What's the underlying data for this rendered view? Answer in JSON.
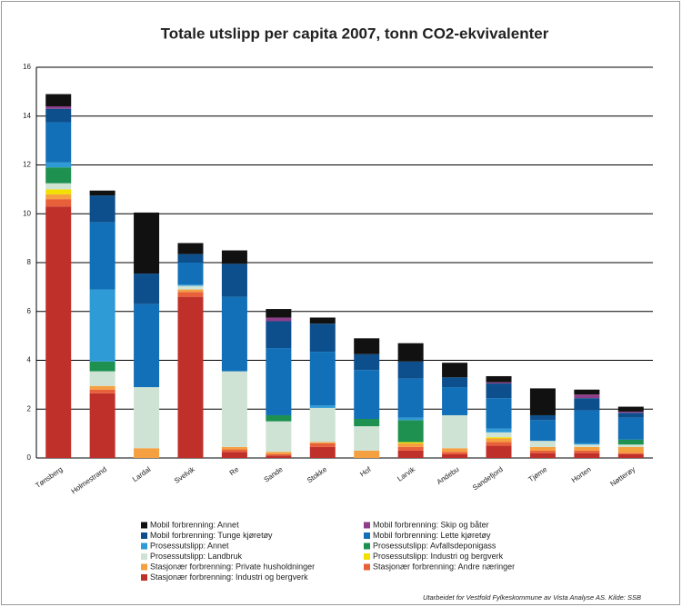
{
  "chart_data": {
    "type": "stacked_bar",
    "title": "Totale utslipp per capita 2007, tonn CO2-ekvivalenter",
    "categories": [
      "Tønsberg",
      "Holmestrand",
      "Lardal",
      "Svelvik",
      "Re",
      "Sande",
      "Stokke",
      "Hof",
      "Larvik",
      "Andebu",
      "Sandefjord",
      "Tjøme",
      "Horten",
      "Nøtterøy"
    ],
    "series": [
      {
        "name": "Stasjonær forbrenning: Industri og bergverk",
        "color": "#c0302a",
        "values": [
          10.3,
          2.65,
          0,
          6.6,
          0.25,
          0.1,
          0.45,
          0,
          0.3,
          0.15,
          0.5,
          0.2,
          0.2,
          0.15
        ]
      },
      {
        "name": "Stasjonær forbrenning: Andre næringer",
        "color": "#e8603a",
        "values": [
          0.3,
          0.15,
          0,
          0.2,
          0.1,
          0.05,
          0.15,
          0,
          0.15,
          0.1,
          0.15,
          0.1,
          0.1,
          0.05
        ]
      },
      {
        "name": "Stasjonær forbrenning: Private husholdninger",
        "color": "#f5a040",
        "values": [
          0.2,
          0.15,
          0.4,
          0.1,
          0.1,
          0.1,
          0.05,
          0.3,
          0.15,
          0.15,
          0.15,
          0.15,
          0.15,
          0.25
        ]
      },
      {
        "name": "Prosessutslipp: Industri og bergverk",
        "color": "#f2e000",
        "values": [
          0.2,
          0,
          0,
          0,
          0,
          0,
          0,
          0,
          0.05,
          0,
          0.05,
          0,
          0,
          0
        ]
      },
      {
        "name": "Prosessutslipp: Landbruk",
        "color": "#cfe3d5",
        "values": [
          0.25,
          0.6,
          2.5,
          0.15,
          3.1,
          1.25,
          1.4,
          1.0,
          0,
          1.35,
          0.2,
          0.25,
          0.1,
          0.1
        ]
      },
      {
        "name": "Prosessutslipp: Avfallsdeponigass",
        "color": "#1e9150",
        "values": [
          0.65,
          0.4,
          0,
          0,
          0,
          0.25,
          0,
          0.3,
          0.9,
          0,
          0,
          0,
          0,
          0.2
        ]
      },
      {
        "name": "Prosessutslipp: Annet",
        "color": "#2e9ad6",
        "values": [
          0.2,
          2.95,
          0,
          0.05,
          0,
          0,
          0.1,
          0,
          0.1,
          0,
          0.15,
          0,
          0.05,
          0
        ]
      },
      {
        "name": "Mobil forbrenning: Lette kjøretøy",
        "color": "#1170b8",
        "values": [
          1.65,
          2.75,
          3.4,
          0.9,
          3.05,
          2.75,
          2.2,
          2.0,
          1.6,
          1.15,
          1.25,
          0.85,
          1.35,
          0.9
        ]
      },
      {
        "name": "Mobil forbrenning: Tunge kjøretøy",
        "color": "#0d4f8c",
        "values": [
          0.55,
          1.1,
          1.25,
          0.35,
          1.35,
          1.1,
          1.15,
          0.65,
          0.7,
          0.4,
          0.6,
          0.2,
          0.5,
          0.2
        ]
      },
      {
        "name": "Mobil forbrenning: Skip og båter",
        "color": "#8e3f8a",
        "values": [
          0.1,
          0,
          0,
          0,
          0,
          0.15,
          0,
          0,
          0,
          0,
          0.05,
          0,
          0.15,
          0.05
        ]
      },
      {
        "name": "Mobil forbrenning: Annet",
        "color": "#111111",
        "values": [
          0.5,
          0.2,
          2.5,
          0.45,
          0.55,
          0.35,
          0.25,
          0.65,
          0.75,
          0.6,
          0.25,
          1.1,
          0.2,
          0.2
        ]
      }
    ],
    "ylim": [
      0,
      16
    ],
    "yticks": [
      0,
      2,
      4,
      6,
      8,
      10,
      12,
      14,
      16
    ],
    "grid": true,
    "footnote": "Utarbeidet for Vestfold Fylkeskommune av Vista Analyse AS. Kilde: SSB"
  }
}
